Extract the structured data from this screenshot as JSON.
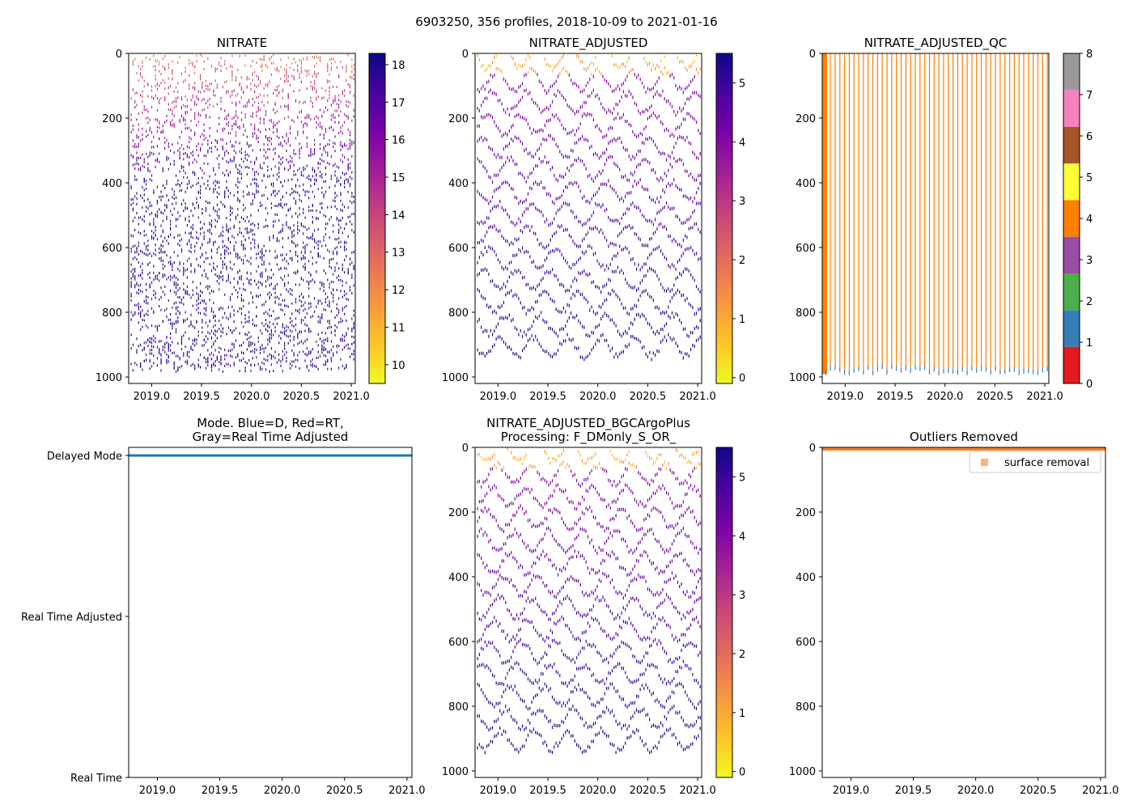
{
  "figure": {
    "suptitle": "6903250, 356 profiles, 2018-10-09 to 2021-01-16"
  },
  "colors": {
    "plasma_r": [
      "#f0f921",
      "#fdc328",
      "#f89441",
      "#e56b5d",
      "#cc4778",
      "#a82296",
      "#7e03a8",
      "#4c02a1",
      "#0d0887"
    ],
    "qc": [
      "#e41a1c",
      "#377eb8",
      "#4daf4a",
      "#984ea3",
      "#ff7f00",
      "#ffff33",
      "#a65628",
      "#f781bf",
      "#999999"
    ],
    "mode_line": "#1f77b4",
    "outlier_marker": "#f9b27a",
    "outlier_band": "#f2812a"
  },
  "chart_data": [
    {
      "id": "nitrate",
      "type": "heatmap",
      "title": "NITRATE",
      "xlim": [
        2018.77,
        2021.04
      ],
      "xticks": [
        2019.0,
        2019.5,
        2020.0,
        2020.5,
        2021.0
      ],
      "xticklabels": [
        "2019.0",
        "2019.5",
        "2020.0",
        "2020.5",
        "2021.0"
      ],
      "ylim": [
        1020,
        0
      ],
      "yticks": [
        0,
        200,
        400,
        600,
        800,
        1000
      ],
      "yticklabels": [
        "0",
        "200",
        "400",
        "600",
        "800",
        "1000"
      ],
      "colorbar": {
        "min": 9.5,
        "max": 18.3,
        "ticks": [
          10,
          11,
          12,
          13,
          14,
          15,
          16,
          17,
          18
        ],
        "ticklabels": [
          "10",
          "11",
          "12",
          "13",
          "14",
          "15",
          "16",
          "17",
          "18"
        ],
        "cmap": "plasma_r"
      }
    },
    {
      "id": "nitrate_adjusted",
      "type": "heatmap",
      "title": "NITRATE_ADJUSTED",
      "xlim": [
        2018.77,
        2021.04
      ],
      "xticks": [
        2019.0,
        2019.5,
        2020.0,
        2020.5,
        2021.0
      ],
      "xticklabels": [
        "2019.0",
        "2019.5",
        "2020.0",
        "2020.5",
        "2021.0"
      ],
      "ylim": [
        1020,
        0
      ],
      "yticks": [
        0,
        200,
        400,
        600,
        800,
        1000
      ],
      "yticklabels": [
        "0",
        "200",
        "400",
        "600",
        "800",
        "1000"
      ],
      "colorbar": {
        "min": -0.1,
        "max": 5.5,
        "ticks": [
          0,
          1,
          2,
          3,
          4,
          5
        ],
        "ticklabels": [
          "0",
          "1",
          "2",
          "3",
          "4",
          "5"
        ],
        "cmap": "plasma_r"
      }
    },
    {
      "id": "nitrate_adjusted_qc",
      "type": "heatmap",
      "title": "NITRATE_ADJUSTED_QC",
      "xlim": [
        2018.77,
        2021.04
      ],
      "xticks": [
        2019.0,
        2019.5,
        2020.0,
        2020.5,
        2021.0
      ],
      "xticklabels": [
        "2019.0",
        "2019.5",
        "2020.0",
        "2020.5",
        "2021.0"
      ],
      "ylim": [
        1020,
        0
      ],
      "yticks": [
        0,
        200,
        400,
        600,
        800,
        1000
      ],
      "yticklabels": [
        "0",
        "200",
        "400",
        "600",
        "800",
        "1000"
      ],
      "dominant_qc": 4,
      "colorbar": {
        "min": 0,
        "max": 8,
        "ticks": [
          0,
          1,
          2,
          3,
          4,
          5,
          6,
          7,
          8
        ],
        "ticklabels": [
          "0",
          "1",
          "2",
          "3",
          "4",
          "5",
          "6",
          "7",
          "8"
        ],
        "cmap": "qc"
      }
    },
    {
      "id": "mode",
      "type": "line",
      "title": "Mode. Blue=D, Red=RT,\nGray=Real Time Adjusted",
      "xlim": [
        2018.77,
        2021.04
      ],
      "xticks": [
        2019.0,
        2019.5,
        2020.0,
        2020.5,
        2021.0
      ],
      "xticklabels": [
        "2019.0",
        "2019.5",
        "2020.0",
        "2020.5",
        "2021.0"
      ],
      "ylim": [
        0,
        2.05
      ],
      "yticks": [
        2,
        1,
        0
      ],
      "yticklabels": [
        "Delayed Mode",
        "Real Time Adjusted",
        "Real Time"
      ],
      "series": [
        {
          "name": "mode",
          "x": [
            2018.77,
            2021.04
          ],
          "y": [
            2,
            2
          ]
        }
      ]
    },
    {
      "id": "nitrate_adjusted_bgcargoplus",
      "type": "heatmap",
      "title": "NITRATE_ADJUSTED_BGCArgoPlus\nProcessing: F_DMonly_S_OR_",
      "xlim": [
        2018.77,
        2021.04
      ],
      "xticks": [
        2019.0,
        2019.5,
        2020.0,
        2020.5,
        2021.0
      ],
      "xticklabels": [
        "2019.0",
        "2019.5",
        "2020.0",
        "2020.5",
        "2021.0"
      ],
      "ylim": [
        1020,
        0
      ],
      "yticks": [
        0,
        200,
        400,
        600,
        800,
        1000
      ],
      "yticklabels": [
        "0",
        "200",
        "400",
        "600",
        "800",
        "1000"
      ],
      "colorbar": {
        "min": -0.1,
        "max": 5.5,
        "ticks": [
          0,
          1,
          2,
          3,
          4,
          5
        ],
        "ticklabels": [
          "0",
          "1",
          "2",
          "3",
          "4",
          "5"
        ],
        "cmap": "plasma_r"
      }
    },
    {
      "id": "outliers_removed",
      "type": "scatter",
      "title": "Outliers Removed",
      "xlim": [
        2018.77,
        2021.04
      ],
      "xticks": [
        2019.0,
        2019.5,
        2020.0,
        2020.5,
        2021.0
      ],
      "xticklabels": [
        "2019.0",
        "2019.5",
        "2020.0",
        "2020.5",
        "2021.0"
      ],
      "ylim": [
        1020,
        0
      ],
      "yticks": [
        0,
        200,
        400,
        600,
        800,
        1000
      ],
      "yticklabels": [
        "0",
        "200",
        "400",
        "600",
        "800",
        "1000"
      ],
      "legend": {
        "location": "top-right",
        "entries": [
          "surface removal"
        ]
      },
      "surface_removal_depth_range": [
        0,
        10
      ]
    }
  ]
}
